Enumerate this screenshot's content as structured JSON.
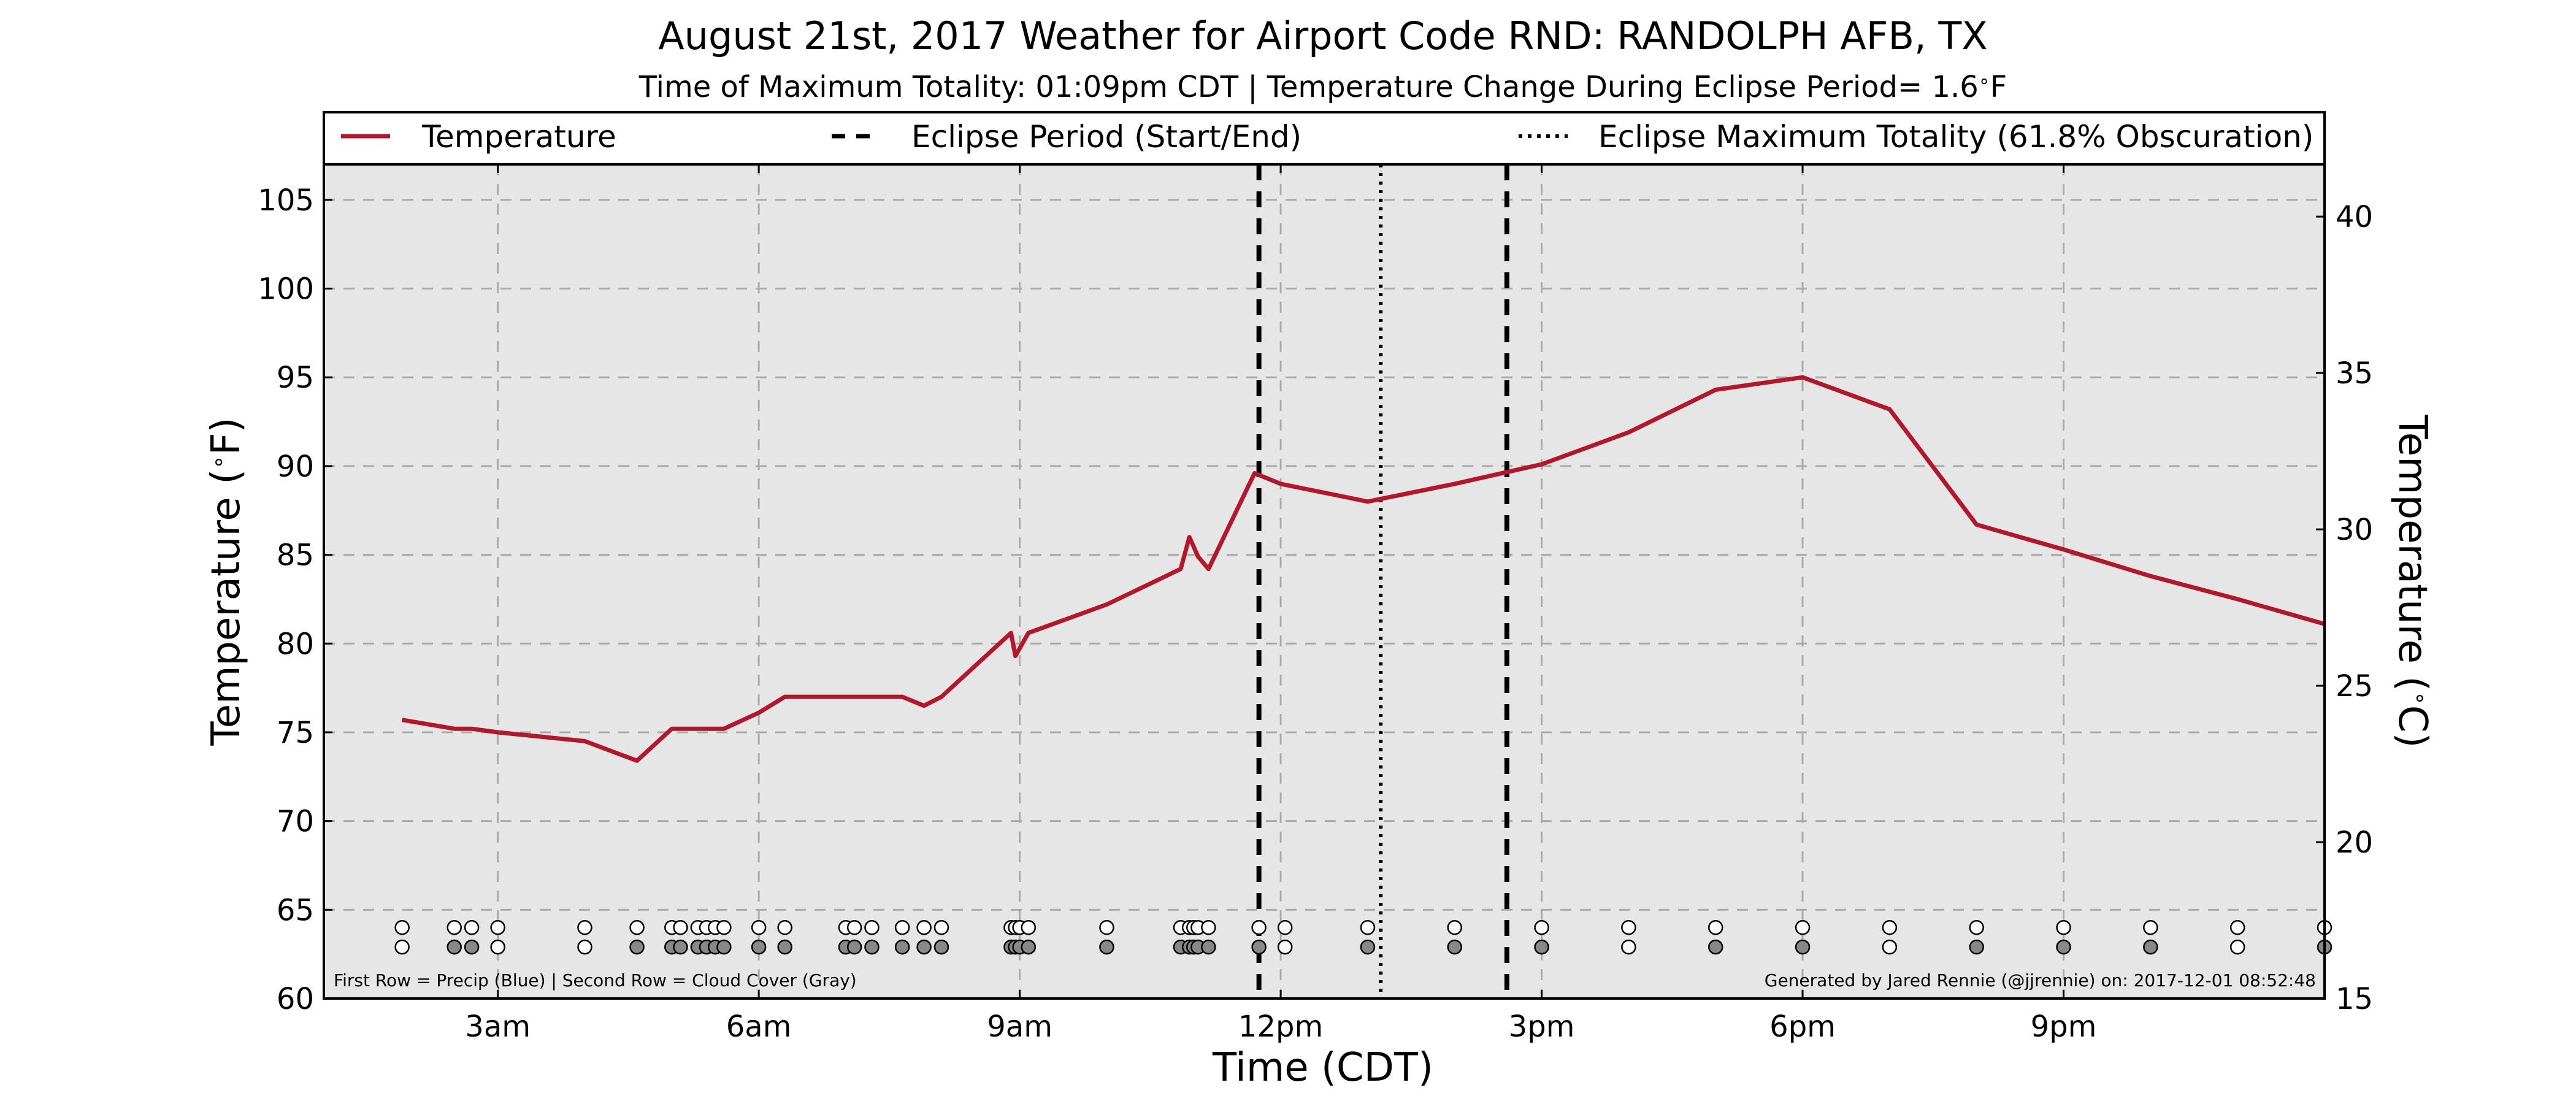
{
  "chart_data": {
    "type": "line",
    "title": "August 21st, 2017 Weather for Airport Code RND: RANDOLPH AFB, TX",
    "subtitle_before": "Time of Maximum Totality: 01:09pm CDT | Temperature Change During Eclipse Period= 1.6",
    "subtitle_deg": "∘",
    "subtitle_unit": "F",
    "xlabel": "Time (CDT)",
    "ylabel_left_prefix": "Temperature (",
    "ylabel_left_suffix": "F)",
    "ylabel_right_prefix": "Temperature (",
    "ylabel_right_suffix": "C)",
    "deg_symbol": "∘",
    "xlim": [
      1.0,
      24.0
    ],
    "ylim": [
      60,
      107
    ],
    "ylim_right": [
      15,
      41.67
    ],
    "grid": true,
    "legend_position": "top (full-width box above plot)",
    "x_ticks": [
      {
        "x": 3,
        "label": "3am"
      },
      {
        "x": 6,
        "label": "6am"
      },
      {
        "x": 9,
        "label": "9am"
      },
      {
        "x": 12,
        "label": "12pm"
      },
      {
        "x": 15,
        "label": "3pm"
      },
      {
        "x": 18,
        "label": "6pm"
      },
      {
        "x": 21,
        "label": "9pm"
      }
    ],
    "y_ticks_left": [
      {
        "v": 60,
        "label": "60"
      },
      {
        "v": 65,
        "label": "65"
      },
      {
        "v": 70,
        "label": "70"
      },
      {
        "v": 75,
        "label": "75"
      },
      {
        "v": 80,
        "label": "80"
      },
      {
        "v": 85,
        "label": "85"
      },
      {
        "v": 90,
        "label": "90"
      },
      {
        "v": 95,
        "label": "95"
      },
      {
        "v": 100,
        "label": "100"
      },
      {
        "v": 105,
        "label": "105"
      }
    ],
    "y_ticks_right": [
      {
        "v": 15,
        "label": "15"
      },
      {
        "v": 20,
        "label": "20"
      },
      {
        "v": 25,
        "label": "25"
      },
      {
        "v": 30,
        "label": "30"
      },
      {
        "v": 35,
        "label": "35"
      },
      {
        "v": 40,
        "label": "40"
      }
    ],
    "series": [
      {
        "name": "Temperature",
        "color": "#b2182b",
        "x": [
          1.9,
          2.5,
          2.7,
          3.0,
          4.0,
          4.6,
          5.0,
          5.2,
          5.4,
          5.6,
          6.0,
          6.3,
          7.0,
          7.2,
          7.5,
          7.65,
          7.9,
          8.1,
          8.9,
          8.95,
          9.1,
          10.0,
          10.85,
          10.95,
          11.05,
          11.17,
          11.7,
          12.0,
          13.0,
          14.0,
          15.0,
          16.0,
          17.0,
          18.0,
          19.0,
          20.0,
          21.0,
          22.0,
          23.0,
          24.0
        ],
        "y": [
          75.7,
          75.2,
          75.2,
          75.0,
          74.5,
          73.4,
          75.2,
          75.2,
          75.2,
          75.2,
          76.1,
          77.0,
          77.0,
          77.0,
          77.0,
          77.0,
          76.5,
          77.0,
          80.6,
          79.3,
          80.6,
          82.2,
          84.2,
          86.0,
          84.9,
          84.2,
          89.6,
          89.0,
          88.0,
          89.0,
          90.1,
          91.9,
          94.3,
          95.0,
          93.2,
          86.7,
          85.3,
          83.8,
          82.5,
          81.1
        ]
      }
    ],
    "eclipse_period": {
      "start_x": 11.75,
      "end_x": 14.6,
      "label": "Eclipse Period (Start/End)",
      "style": "dashed",
      "color": "#000000"
    },
    "eclipse_max": {
      "x": 13.15,
      "label": "Eclipse Maximum Totality (61.8% Obscuration)",
      "style": "dotted",
      "color": "#000000"
    },
    "precip_row": {
      "label": "First Row = Precip (Blue)",
      "y": 64,
      "x": [
        1.9,
        2.5,
        2.7,
        3.0,
        4.0,
        4.6,
        5.0,
        5.1,
        5.3,
        5.4,
        5.5,
        5.6,
        6.0,
        6.3,
        7.0,
        7.1,
        7.3,
        7.65,
        7.9,
        8.1,
        8.9,
        8.95,
        9.0,
        9.1,
        10.0,
        10.85,
        10.95,
        11.0,
        11.05,
        11.17,
        11.75,
        12.05,
        13.0,
        14.0,
        15.0,
        16.0,
        17.0,
        18.0,
        19.0,
        20.0,
        21.0,
        22.0,
        23.0,
        24.0
      ],
      "fill": [
        0,
        0,
        0,
        0,
        0,
        0,
        0,
        0,
        0,
        0,
        0,
        0,
        0,
        0,
        0,
        0,
        0,
        0,
        0,
        0,
        0,
        0,
        0,
        0,
        0,
        0,
        0,
        0,
        0,
        0,
        0,
        0,
        0,
        0,
        0,
        0,
        0,
        0,
        0,
        0,
        0,
        0,
        0,
        0
      ]
    },
    "cloud_row": {
      "label": "Second Row = Cloud Cover (Gray)",
      "y": 62.9,
      "x": [
        1.9,
        2.5,
        2.7,
        3.0,
        4.0,
        4.6,
        5.0,
        5.1,
        5.3,
        5.4,
        5.5,
        5.6,
        6.0,
        6.3,
        7.0,
        7.1,
        7.3,
        7.65,
        7.9,
        8.1,
        8.9,
        8.95,
        9.0,
        9.1,
        10.0,
        10.85,
        10.95,
        11.0,
        11.05,
        11.17,
        11.75,
        12.05,
        13.0,
        14.0,
        15.0,
        16.0,
        17.0,
        18.0,
        19.0,
        20.0,
        21.0,
        22.0,
        23.0,
        24.0
      ],
      "fill": [
        0,
        1,
        1,
        0,
        0,
        1,
        1,
        1,
        1,
        1,
        1,
        1,
        1,
        1,
        1,
        1,
        1,
        1,
        1,
        1,
        1,
        1,
        1,
        1,
        1,
        1,
        1,
        1,
        1,
        1,
        1,
        0,
        1,
        1,
        1,
        0,
        1,
        1,
        0,
        1,
        1,
        1,
        0,
        1
      ]
    },
    "footer_left": "First Row = Precip (Blue) | Second Row = Cloud Cover (Gray)",
    "footer_right": "Generated by Jared Rennie (@jjrennie) on: 2017-12-01 08:52:48",
    "colors": {
      "plot_background": "#e6e6e6",
      "temperature_line": "#b2182b",
      "marker_empty": "#ffffff",
      "marker_filled": "#888888",
      "grid": "#aaaaaa"
    }
  }
}
